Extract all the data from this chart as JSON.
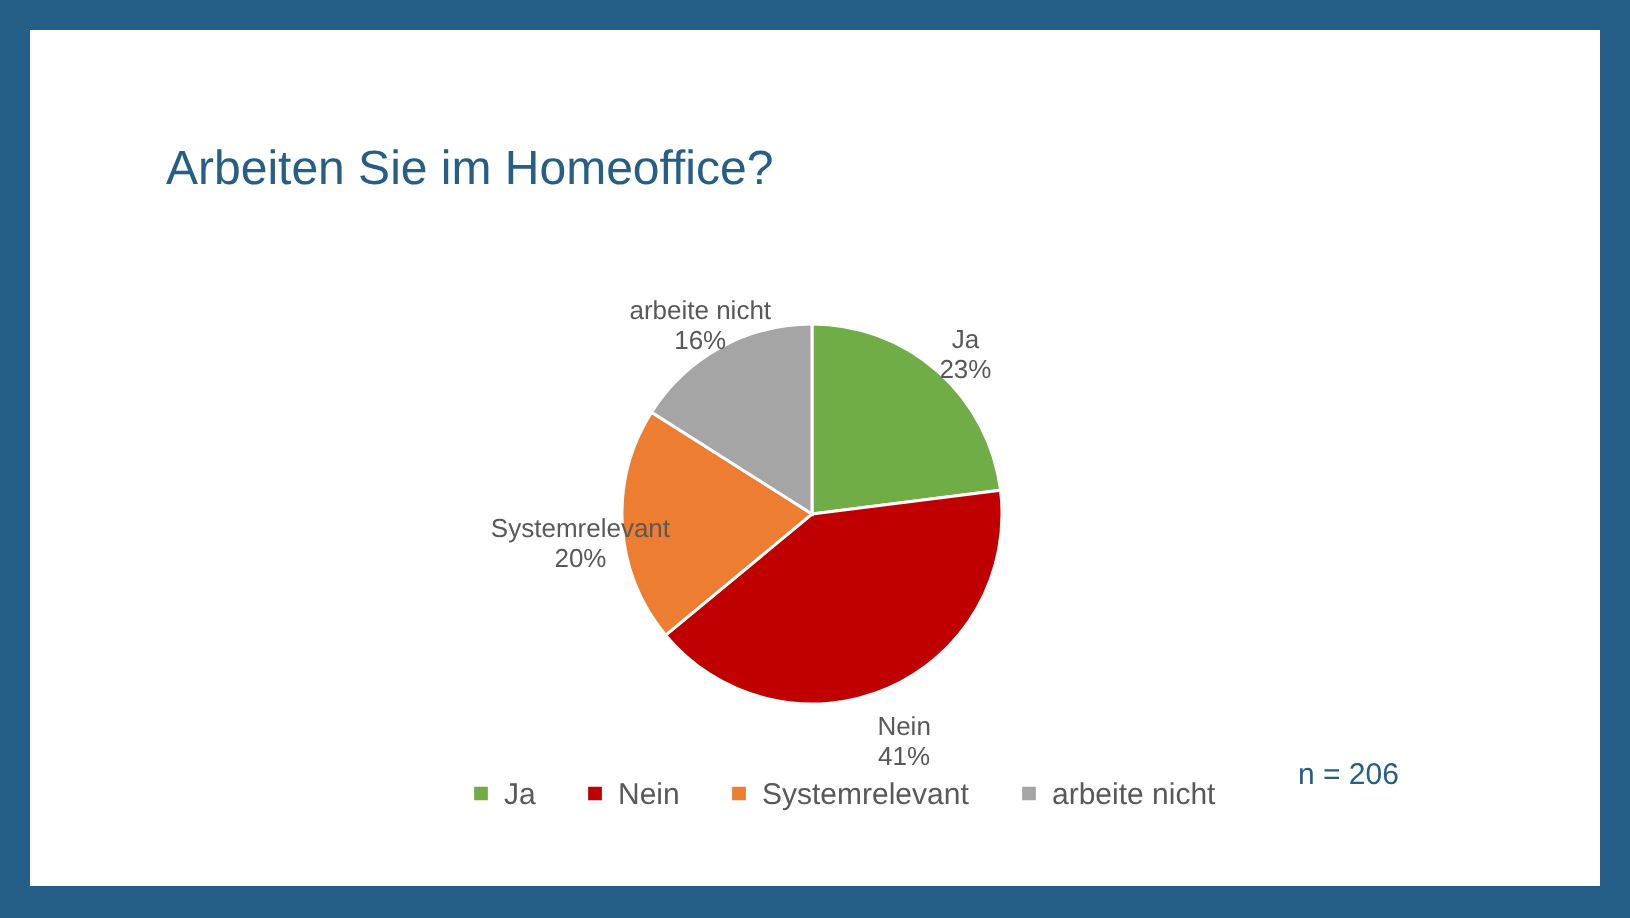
{
  "chart_data": {
    "type": "pie",
    "title": "Arbeiten Sie im Homeoffice?",
    "categories": [
      "Ja",
      "Nein",
      "Systemrelevant",
      "arbeite nicht"
    ],
    "values": [
      23,
      41,
      20,
      16
    ],
    "colors": [
      "#70ad47",
      "#c00000",
      "#ed7d31",
      "#a5a5a5"
    ],
    "value_labels": [
      "23%",
      "41%",
      "20%",
      "16%"
    ],
    "legend": "bottom",
    "annotations": [
      "n = 206"
    ]
  }
}
